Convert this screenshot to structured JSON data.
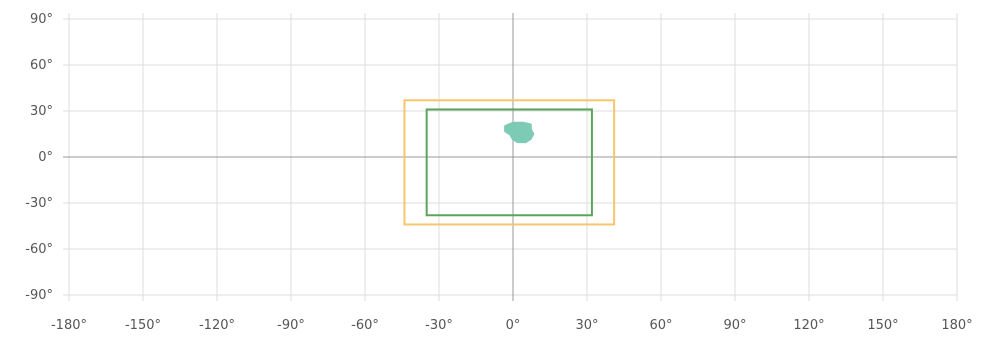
{
  "chart_data": {
    "type": "map-extent",
    "title": "",
    "xlabel": "",
    "ylabel": "",
    "xlim": [
      -180,
      180
    ],
    "ylim": [
      -90,
      90
    ],
    "grid": true,
    "x_ticks": [
      -180,
      -150,
      -120,
      -90,
      -60,
      -30,
      0,
      30,
      60,
      90,
      120,
      150,
      180
    ],
    "y_ticks": [
      90,
      60,
      30,
      0,
      -30,
      -60,
      -90
    ],
    "x_tick_labels": [
      "-180°",
      "-150°",
      "-120°",
      "-90°",
      "-60°",
      "-30°",
      "0°",
      "30°",
      "60°",
      "90°",
      "120°",
      "150°",
      "180°"
    ],
    "y_tick_labels": [
      "90°",
      "60°",
      "30°",
      "0°",
      "-30°",
      "-60°",
      "-90°"
    ],
    "rectangles": [
      {
        "west": -44,
        "east": 41,
        "south": -44,
        "north": 37,
        "color": "#f7c56b"
      },
      {
        "west": -35,
        "east": 32,
        "south": -38,
        "north": 31,
        "color": "#5aa55a"
      }
    ],
    "blob": {
      "color": "#7ecbb5",
      "points": [
        [
          -3,
          20
        ],
        [
          0,
          22
        ],
        [
          4,
          22
        ],
        [
          7,
          21
        ],
        [
          7,
          18
        ],
        [
          8,
          15
        ],
        [
          7,
          12
        ],
        [
          5,
          10
        ],
        [
          2,
          10
        ],
        [
          0,
          12
        ],
        [
          -1,
          15
        ],
        [
          -3,
          17
        ]
      ]
    }
  }
}
